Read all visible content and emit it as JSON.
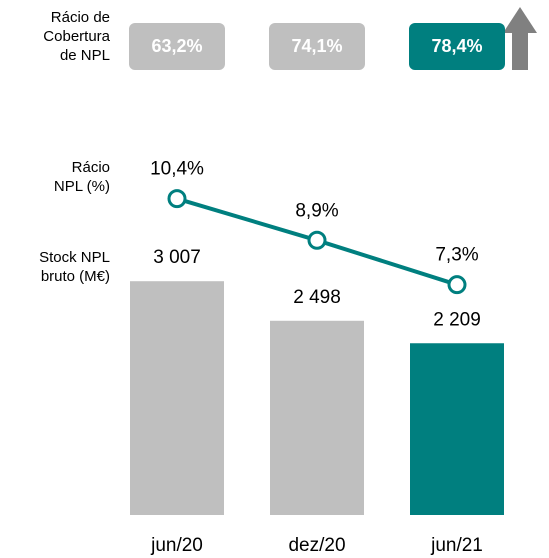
{
  "chart_data": {
    "type": "bar",
    "categories": [
      "jun/20",
      "dez/20",
      "jun/21"
    ],
    "coverage": {
      "name": "Rácio de\nCobertura\nde NPL",
      "values": [
        63.2,
        74.1,
        78.4
      ],
      "value_labels": [
        "63,2%",
        "74,1%",
        "78,4%"
      ],
      "colors": [
        "#bfbfbf",
        "#bfbfbf",
        "#007f7f"
      ]
    },
    "series": [
      {
        "name": "Stock NPL\nbruto (M€)",
        "type": "bar",
        "values": [
          3007,
          2498,
          2209
        ],
        "value_labels": [
          "3 007",
          "2 498",
          "2 209"
        ],
        "colors": [
          "#bfbfbf",
          "#bfbfbf",
          "#007f7f"
        ]
      },
      {
        "name": "Rácio\nNPL (%)",
        "type": "line",
        "axis": "y2",
        "values": [
          10.4,
          8.9,
          7.3
        ],
        "value_labels": [
          "10,4%",
          "8,9%",
          "7,3%"
        ],
        "color": "#007f7f"
      }
    ],
    "ylim": [
      0,
      4000
    ],
    "y2lim": [
      -1,
      11
    ]
  }
}
